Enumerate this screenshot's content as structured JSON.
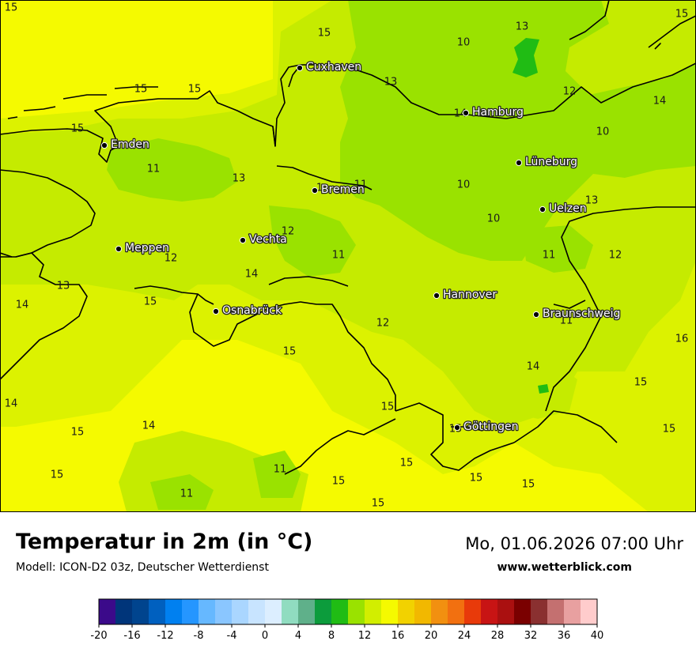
{
  "title": "Temperatur in 2m (in °C)",
  "model": "Modell: ICON-D2 03z, Deutscher Wetterdienst",
  "datetime": "Mo, 01.06.2026 07:00 Uhr",
  "website": "www.wetterblick.com",
  "colors": {
    "t10": "#9ae200",
    "t12": "#c5eb00",
    "t14": "#dcf200",
    "t16": "#f5fa00",
    "t8": "#20bc14",
    "coast": "#000000"
  },
  "cities": [
    {
      "name": "Cuxhaven"
    },
    {
      "name": "Hamburg"
    },
    {
      "name": "Emden"
    },
    {
      "name": "Bremen"
    },
    {
      "name": "Lüneburg"
    },
    {
      "name": "Uelzen"
    },
    {
      "name": "Meppen"
    },
    {
      "name": "Vechta"
    },
    {
      "name": "Hannover"
    },
    {
      "name": "Osnabrück"
    },
    {
      "name": "Braunschweig"
    },
    {
      "name": "Göttingen"
    }
  ],
  "temperature_labels": [
    "15",
    "15",
    "13",
    "10",
    "15",
    "15",
    "15",
    "13",
    "12",
    "14",
    "15",
    "14",
    "10",
    "11",
    "13",
    "10",
    "1",
    "11",
    "13",
    "10",
    "12",
    "11",
    "11",
    "12",
    "12",
    "14",
    "13",
    "14",
    "15",
    "12",
    "11",
    "16",
    "15",
    "15",
    "14",
    "14",
    "15",
    "15",
    "15",
    "14",
    "15",
    "15",
    "15",
    "11",
    "15",
    "15",
    "15",
    "11",
    "15"
  ],
  "colorbar": {
    "unit": "°C",
    "ticks": [
      "-20",
      "-16",
      "-12",
      "-8",
      "-4",
      "0",
      "4",
      "8",
      "12",
      "16",
      "20",
      "24",
      "28",
      "32",
      "36",
      "40"
    ],
    "colors": [
      "#3b0a8a",
      "#00357a",
      "#00448e",
      "#0060bf",
      "#0080f0",
      "#2596ff",
      "#66b8ff",
      "#8ac6ff",
      "#aad6ff",
      "#c8e4ff",
      "#dceeff",
      "#90dcc0",
      "#5fb08a",
      "#0c9c3c",
      "#20bc14",
      "#9ae200",
      "#d2ee00",
      "#f5fa00",
      "#f2d200",
      "#f2b800",
      "#f29010",
      "#f27010",
      "#e83a0a",
      "#c81414",
      "#aa1010",
      "#7a0000",
      "#8a3030",
      "#c47070",
      "#e8a0a0",
      "#ffcccc"
    ]
  }
}
